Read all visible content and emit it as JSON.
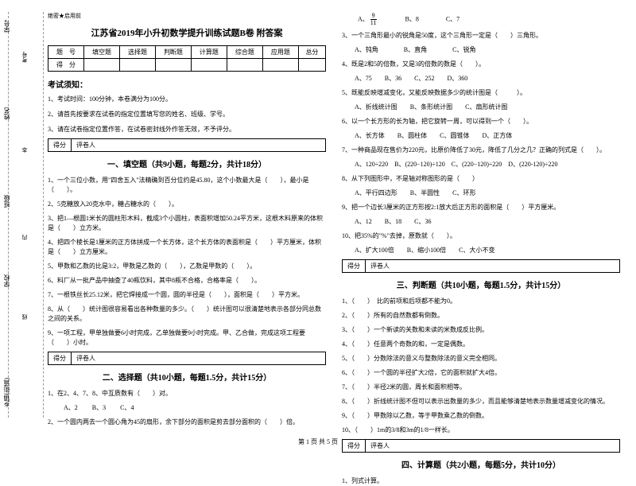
{
  "sidebar": {
    "labels": [
      "学号",
      "姓名",
      "班级",
      "学校",
      "乡镇(街道)"
    ],
    "inner": [
      "考号",
      "本",
      "内",
      "线",
      "封"
    ]
  },
  "header_note": "绝密★启用前",
  "title": "江苏省2019年小升初数学提升训练试题B卷 附答案",
  "score_table": {
    "headers": [
      "题　号",
      "填空题",
      "选择题",
      "判断题",
      "计算题",
      "综合题",
      "应用题",
      "总分"
    ],
    "row_label": "得　分"
  },
  "notice": {
    "title": "考试须知：",
    "items": [
      "1、考试时间：100分钟，本卷满分为100分。",
      "2、请首先按要求在试卷的指定位置填写您的姓名、班级、学号。",
      "3、请在试卷指定位置作答，在试卷密封线外作答无效，不予评分。"
    ]
  },
  "section_box": {
    "score": "得分",
    "reviewer": "评卷人"
  },
  "sections": {
    "s1": "一、填空题（共9小题，每题2分，共计18分）",
    "s2": "二、选择题（共10小题，每题1.5分，共计15分）",
    "s3": "三、判断题（共10小题，每题1.5分，共计15分）",
    "s4": "四、计算题（共2小题，每题5分，共计10分）"
  },
  "left_questions": [
    "1、一个三位小数，用\"四舍五入\"法精确到百分位约是45.80，这个小数最大是（　　），最小是（　　）。",
    "2、5克糖放入20克水中，糖占糖水的（　　）。",
    "3、把1—根圆1米长的圆柱形木料，截成3个小圆柱，表面积增加50.24平方米，这根木料原来的体积是（　　）立方米。",
    "4、把四个棱长是1厘米的正方体拼成一个长方体，这个长方体的表面积是（　　）平方厘米，体积是（　　）立方厘米。",
    "5、甲数和乙数的比是3:2，甲数是乙数的（　　），乙数是甲数的（　　）。",
    "6、料厂从一批产品中抽查了40瓶饮料，其中8瓶不合格，合格率是（　　）。",
    "7、一根铁丝长25.12米，把它焊接成一个圆，圆的半径是（　　），面积是（　　）平方米。",
    "8、从（　　）统计图很容易看出各种数量的多少。（　　）统计图可以很清楚地表示各部分同总数之间的关系。",
    "9、一项工程，甲单独做要6小时完成，乙单独做要9小时完成。甲、乙合做，完成这项工程要（　　）小时。"
  ],
  "choice_q1": "1、在2、4、7、8、中互质数有（　　）对。",
  "choice_q1_opts": [
    "A、2",
    "B、3",
    "C、4"
  ],
  "choice_q2": "2、一个圆内两去一个圆心角为45的扇形，余下部分的面积是剪去部分面积的（　　）倍。",
  "right_top_opts": {
    "frac_num": "9",
    "frac_den": "11",
    "b": "B、8",
    "c": "C、7"
  },
  "right_questions": [
    "3、一个三角形最小的锐角是50度，这个三角形一定是（　　）三角形。",
    "　　A、钝角　　　　B、直角　　　　C、锐角",
    "4、既是2和5的倍数，又是3的倍数的数是（　　）。",
    "　　A、75　　B、36　　C、252　　D、360",
    "5、既能反映增减变化，又能反映数据多少的统计图是（　　　）。",
    "　　A、折线统计图　　B、条形统计图　　C、扇形统计图",
    "6、以一个长方形的长为轴，把它旋转一周，可以得到一个（　　）。",
    "　　A、长方体　　B、圆柱体　　C、圆锥体　　D、正方体",
    "7、一种商品现在售价为220元，比原价降低了30元，降低了几分之几？正确的列式是（　　）。",
    "　　A、120÷220　B、(220−120)÷120　C、(220−120)÷220　D、(220-120)÷220",
    "8、从下列图形中，不是轴对称图形的是（　　）",
    "　　A、平行四边形　　B、半圆性　　C、环形",
    "9、把一个边长3厘米的正方形按2:1放大后正方形的面积是（　　）平方厘米。",
    "　　A、12　　B、18　　C、36",
    "10、把35%的\"%\"去掉，原数就（　　）。",
    "　　A、扩大100倍　　B、缩小100倍　　C、大小不变"
  ],
  "judge_questions": [
    "1、（　　）　比的前项和后项都不能为0。",
    "2、（　　）所有的自然数都有倒数。",
    "3、（　　）一个新读的关数和未读的米数成反比例。",
    "4、（　　）任意两个奇数的和，一定是偶数。",
    "5、（　　）分数除法的意义与整数除法的意义完全相同。",
    "6、（　　）一个圆的半径扩大2倍，它的面积就扩大4倍。",
    "7、（　　）半径2米的圆，周长和面积相等。",
    "8、（　　）折线统计图不但可以表示出数量的多少，而且能够清楚地表示数量增减变化的情况。",
    "9、（　　）甲数除以乙数，等于甲数乘乙数的倒数。",
    "10、（　　）1m的3/8和3m的1/8一样长。"
  ],
  "calc_q1": "1、列式计算。",
  "footer": "第 1 页 共 5 页"
}
